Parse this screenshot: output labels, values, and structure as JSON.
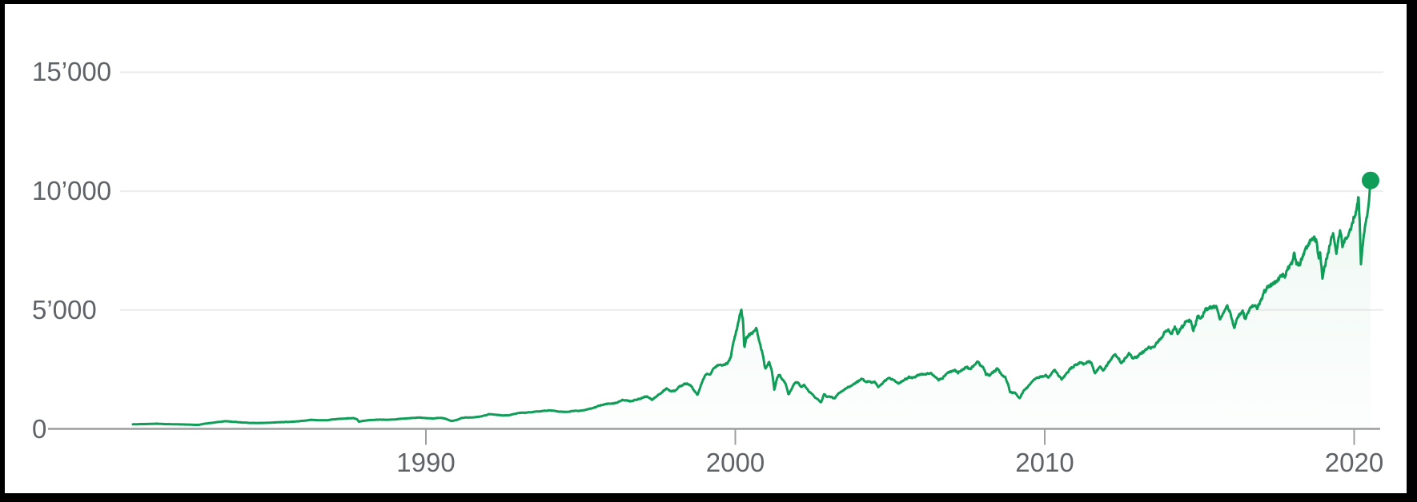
{
  "frame": {
    "border_color": "#000000",
    "background": "#ffffff"
  },
  "chart_data": {
    "type": "line",
    "legend": "none",
    "grid": "horizontal-only",
    "x_range": [
      1980.5,
      2020.9
    ],
    "y_range": [
      0,
      16500
    ],
    "x_ticks": [
      {
        "value": 1990,
        "label": "1990"
      },
      {
        "value": 2000,
        "label": "2000"
      },
      {
        "value": 2010,
        "label": "2010"
      },
      {
        "value": 2020,
        "label": "2020"
      }
    ],
    "y_ticks": [
      {
        "value": 0,
        "label": "0"
      },
      {
        "value": 5000,
        "label": "5’000"
      },
      {
        "value": 10000,
        "label": "10’000"
      },
      {
        "value": 15000,
        "label": "15’000"
      }
    ],
    "end_marker": {
      "year": 2020.53,
      "value": 10450
    },
    "style": {
      "line_color": "#0f9d58",
      "dot_color": "#0f9d58",
      "fill_top_color": "rgba(15,157,88,0.10)",
      "fill_bottom_color": "rgba(15,157,88,0.01)",
      "grid_color": "#ececec",
      "axis_color": "#9e9e9e",
      "label_color": "#5f6368"
    },
    "series": [
      {
        "name": "index-price",
        "color": "#0f9d58",
        "points": [
          [
            1980.55,
            195
          ],
          [
            1980.8,
            200
          ],
          [
            1981.05,
            205
          ],
          [
            1981.3,
            215
          ],
          [
            1981.55,
            200
          ],
          [
            1981.8,
            195
          ],
          [
            1982.1,
            185
          ],
          [
            1982.4,
            175
          ],
          [
            1982.65,
            168
          ],
          [
            1982.85,
            220
          ],
          [
            1983.05,
            245
          ],
          [
            1983.3,
            290
          ],
          [
            1983.5,
            320
          ],
          [
            1983.75,
            300
          ],
          [
            1984.0,
            275
          ],
          [
            1984.3,
            250
          ],
          [
            1984.55,
            242
          ],
          [
            1984.8,
            252
          ],
          [
            1985.0,
            262
          ],
          [
            1985.3,
            282
          ],
          [
            1985.6,
            292
          ],
          [
            1985.9,
            322
          ],
          [
            1986.1,
            352
          ],
          [
            1986.3,
            378
          ],
          [
            1986.55,
            362
          ],
          [
            1986.8,
            362
          ],
          [
            1987.0,
            392
          ],
          [
            1987.3,
            428
          ],
          [
            1987.65,
            452
          ],
          [
            1987.78,
            405
          ],
          [
            1987.83,
            300
          ],
          [
            1987.95,
            328
          ],
          [
            1988.2,
            372
          ],
          [
            1988.5,
            390
          ],
          [
            1988.8,
            380
          ],
          [
            1989.0,
            402
          ],
          [
            1989.3,
            438
          ],
          [
            1989.6,
            462
          ],
          [
            1989.8,
            482
          ],
          [
            1990.0,
            452
          ],
          [
            1990.2,
            436
          ],
          [
            1990.45,
            466
          ],
          [
            1990.6,
            442
          ],
          [
            1990.82,
            332
          ],
          [
            1991.0,
            378
          ],
          [
            1991.15,
            458
          ],
          [
            1991.3,
            482
          ],
          [
            1991.5,
            476
          ],
          [
            1991.7,
            506
          ],
          [
            1991.9,
            562
          ],
          [
            1992.05,
            618
          ],
          [
            1992.3,
            592
          ],
          [
            1992.5,
            566
          ],
          [
            1992.7,
            582
          ],
          [
            1992.9,
            652
          ],
          [
            1993.05,
            682
          ],
          [
            1993.2,
            672
          ],
          [
            1993.4,
            702
          ],
          [
            1993.6,
            732
          ],
          [
            1993.8,
            762
          ],
          [
            1994.0,
            782
          ],
          [
            1994.2,
            752
          ],
          [
            1994.35,
            722
          ],
          [
            1994.55,
            722
          ],
          [
            1994.75,
            752
          ],
          [
            1994.95,
            760
          ],
          [
            1995.1,
            780
          ],
          [
            1995.3,
            840
          ],
          [
            1995.5,
            920
          ],
          [
            1995.7,
            1005
          ],
          [
            1995.9,
            1055
          ],
          [
            1996.05,
            1070
          ],
          [
            1996.2,
            1110
          ],
          [
            1996.35,
            1210
          ],
          [
            1996.5,
            1190
          ],
          [
            1996.62,
            1140
          ],
          [
            1996.8,
            1220
          ],
          [
            1997.0,
            1310
          ],
          [
            1997.15,
            1370
          ],
          [
            1997.3,
            1235
          ],
          [
            1997.5,
            1425
          ],
          [
            1997.65,
            1580
          ],
          [
            1997.78,
            1700
          ],
          [
            1997.9,
            1600
          ],
          [
            1998.05,
            1620
          ],
          [
            1998.2,
            1790
          ],
          [
            1998.4,
            1900
          ],
          [
            1998.55,
            1850
          ],
          [
            1998.7,
            1550
          ],
          [
            1998.78,
            1440
          ],
          [
            1998.9,
            1870
          ],
          [
            1999.0,
            2200
          ],
          [
            1999.08,
            2340
          ],
          [
            1999.18,
            2290
          ],
          [
            1999.3,
            2550
          ],
          [
            1999.42,
            2650
          ],
          [
            1999.52,
            2740
          ],
          [
            1999.65,
            2700
          ],
          [
            1999.75,
            2750
          ],
          [
            1999.85,
            3000
          ],
          [
            1999.95,
            3700
          ],
          [
            2000.05,
            4200
          ],
          [
            2000.12,
            4700
          ],
          [
            2000.19,
            5048
          ],
          [
            2000.25,
            4550
          ],
          [
            2000.29,
            3350
          ],
          [
            2000.36,
            3850
          ],
          [
            2000.45,
            3950
          ],
          [
            2000.55,
            4000
          ],
          [
            2000.67,
            4230
          ],
          [
            2000.78,
            3650
          ],
          [
            2000.88,
            3150
          ],
          [
            2000.97,
            2520
          ],
          [
            2001.05,
            2700
          ],
          [
            2001.09,
            2860
          ],
          [
            2001.18,
            2440
          ],
          [
            2001.26,
            1640
          ],
          [
            2001.36,
            2180
          ],
          [
            2001.42,
            2280
          ],
          [
            2001.52,
            2080
          ],
          [
            2001.62,
            1920
          ],
          [
            2001.72,
            1425
          ],
          [
            2001.82,
            1700
          ],
          [
            2001.92,
            1940
          ],
          [
            2002.02,
            1960
          ],
          [
            2002.12,
            1780
          ],
          [
            2002.22,
            1850
          ],
          [
            2002.32,
            1690
          ],
          [
            2002.45,
            1520
          ],
          [
            2002.58,
            1320
          ],
          [
            2002.68,
            1220
          ],
          [
            2002.77,
            1114
          ],
          [
            2002.87,
            1470
          ],
          [
            2002.97,
            1340
          ],
          [
            2003.1,
            1330
          ],
          [
            2003.2,
            1275
          ],
          [
            2003.35,
            1505
          ],
          [
            2003.5,
            1645
          ],
          [
            2003.65,
            1755
          ],
          [
            2003.8,
            1865
          ],
          [
            2003.95,
            1970
          ],
          [
            2004.07,
            2100
          ],
          [
            2004.2,
            1990
          ],
          [
            2004.35,
            1965
          ],
          [
            2004.5,
            1990
          ],
          [
            2004.62,
            1760
          ],
          [
            2004.75,
            1920
          ],
          [
            2004.9,
            2080
          ],
          [
            2005.0,
            2150
          ],
          [
            2005.12,
            2060
          ],
          [
            2005.27,
            1925
          ],
          [
            2005.45,
            2065
          ],
          [
            2005.6,
            2190
          ],
          [
            2005.75,
            2125
          ],
          [
            2005.92,
            2240
          ],
          [
            2006.05,
            2300
          ],
          [
            2006.2,
            2315
          ],
          [
            2006.33,
            2345
          ],
          [
            2006.5,
            2125
          ],
          [
            2006.57,
            2055
          ],
          [
            2006.72,
            2170
          ],
          [
            2006.87,
            2360
          ],
          [
            2007.0,
            2425
          ],
          [
            2007.1,
            2465
          ],
          [
            2007.2,
            2365
          ],
          [
            2007.37,
            2535
          ],
          [
            2007.5,
            2605
          ],
          [
            2007.58,
            2505
          ],
          [
            2007.72,
            2705
          ],
          [
            2007.82,
            2860
          ],
          [
            2007.92,
            2660
          ],
          [
            2008.02,
            2600
          ],
          [
            2008.1,
            2280
          ],
          [
            2008.22,
            2270
          ],
          [
            2008.35,
            2410
          ],
          [
            2008.47,
            2550
          ],
          [
            2008.6,
            2310
          ],
          [
            2008.72,
            2190
          ],
          [
            2008.8,
            1960
          ],
          [
            2008.88,
            1550
          ],
          [
            2008.97,
            1540
          ],
          [
            2009.08,
            1480
          ],
          [
            2009.19,
            1270
          ],
          [
            2009.32,
            1620
          ],
          [
            2009.45,
            1760
          ],
          [
            2009.6,
            2010
          ],
          [
            2009.75,
            2130
          ],
          [
            2009.9,
            2200
          ],
          [
            2010.02,
            2280
          ],
          [
            2010.12,
            2160
          ],
          [
            2010.25,
            2410
          ],
          [
            2010.32,
            2530
          ],
          [
            2010.45,
            2260
          ],
          [
            2010.55,
            2110
          ],
          [
            2010.67,
            2260
          ],
          [
            2010.82,
            2510
          ],
          [
            2010.95,
            2660
          ],
          [
            2011.05,
            2700
          ],
          [
            2011.15,
            2790
          ],
          [
            2011.25,
            2710
          ],
          [
            2011.37,
            2874
          ],
          [
            2011.5,
            2780
          ],
          [
            2011.62,
            2350
          ],
          [
            2011.7,
            2510
          ],
          [
            2011.8,
            2660
          ],
          [
            2011.88,
            2450
          ],
          [
            2012.0,
            2660
          ],
          [
            2012.15,
            2960
          ],
          [
            2012.25,
            3120
          ],
          [
            2012.37,
            2980
          ],
          [
            2012.47,
            2760
          ],
          [
            2012.6,
            2960
          ],
          [
            2012.72,
            3180
          ],
          [
            2012.85,
            2980
          ],
          [
            2012.97,
            3030
          ],
          [
            2013.1,
            3160
          ],
          [
            2013.25,
            3270
          ],
          [
            2013.37,
            3440
          ],
          [
            2013.5,
            3450
          ],
          [
            2013.62,
            3610
          ],
          [
            2013.77,
            3790
          ],
          [
            2013.9,
            4060
          ],
          [
            2014.0,
            4160
          ],
          [
            2014.1,
            4010
          ],
          [
            2014.2,
            4320
          ],
          [
            2014.3,
            4040
          ],
          [
            2014.45,
            4350
          ],
          [
            2014.6,
            4560
          ],
          [
            2014.72,
            4610
          ],
          [
            2014.8,
            4160
          ],
          [
            2014.95,
            4780
          ],
          [
            2015.07,
            4660
          ],
          [
            2015.2,
            5000
          ],
          [
            2015.37,
            5090
          ],
          [
            2015.55,
            5219
          ],
          [
            2015.65,
            4560
          ],
          [
            2015.77,
            4910
          ],
          [
            2015.9,
            5120
          ],
          [
            2016.0,
            4910
          ],
          [
            2016.12,
            4300
          ],
          [
            2016.27,
            4810
          ],
          [
            2016.4,
            4960
          ],
          [
            2016.49,
            4610
          ],
          [
            2016.62,
            5110
          ],
          [
            2016.77,
            5310
          ],
          [
            2016.86,
            5060
          ],
          [
            2017.0,
            5450
          ],
          [
            2017.15,
            5860
          ],
          [
            2017.3,
            6110
          ],
          [
            2017.45,
            6160
          ],
          [
            2017.6,
            6390
          ],
          [
            2017.75,
            6460
          ],
          [
            2017.9,
            6810
          ],
          [
            2018.0,
            7010
          ],
          [
            2018.07,
            7505
          ],
          [
            2018.13,
            6870
          ],
          [
            2018.27,
            7060
          ],
          [
            2018.4,
            7460
          ],
          [
            2018.55,
            7810
          ],
          [
            2018.66,
            8110
          ],
          [
            2018.78,
            7910
          ],
          [
            2018.85,
            7210
          ],
          [
            2018.9,
            7460
          ],
          [
            2018.98,
            6330
          ],
          [
            2019.07,
            6920
          ],
          [
            2019.2,
            7660
          ],
          [
            2019.32,
            8160
          ],
          [
            2019.42,
            7350
          ],
          [
            2019.55,
            8330
          ],
          [
            2019.62,
            7710
          ],
          [
            2019.72,
            8010
          ],
          [
            2019.82,
            8160
          ],
          [
            2019.92,
            8570
          ],
          [
            2020.02,
            9010
          ],
          [
            2020.08,
            9320
          ],
          [
            2020.14,
            9817
          ],
          [
            2020.18,
            8550
          ],
          [
            2020.22,
            6860
          ],
          [
            2020.28,
            7720
          ],
          [
            2020.35,
            8520
          ],
          [
            2020.42,
            9020
          ],
          [
            2020.48,
            9620
          ],
          [
            2020.53,
            10450
          ]
        ]
      }
    ]
  }
}
